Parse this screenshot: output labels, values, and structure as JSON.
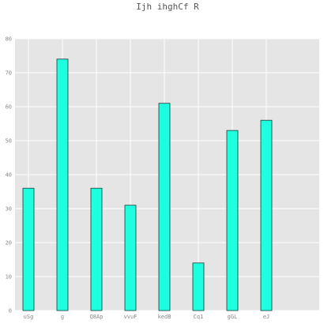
{
  "chart_data": {
    "type": "bar",
    "title": "Ijh ihghCf  R",
    "xlabel": "",
    "ylabel": "",
    "categories": [
      "uSg",
      "g",
      "Q8Ap",
      "vvuF",
      "kedB",
      "Cq1",
      "gGL",
      "eJ"
    ],
    "values": [
      36,
      74,
      36,
      31,
      61,
      14,
      53,
      56
    ],
    "ylim": [
      0,
      80
    ],
    "yticks": [
      0,
      10,
      20,
      30,
      40,
      50,
      60,
      70,
      80
    ],
    "grid": true,
    "legend": "none",
    "colors": {
      "bar_fill": "#1effe0",
      "bar_stroke": "#1a3a35",
      "plot_background": "#e5e5e5",
      "grid": "#ffffff"
    }
  }
}
